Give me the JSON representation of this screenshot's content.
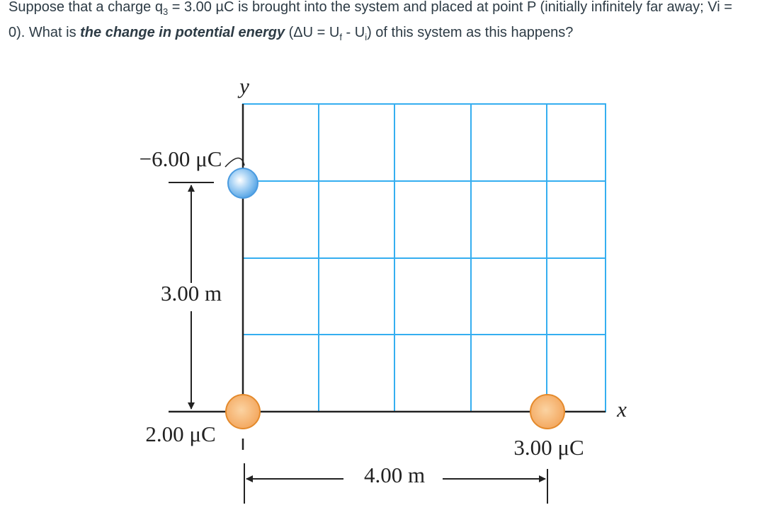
{
  "question": {
    "segments": [
      "Suppose that a charge q",
      "3",
      " = 3.00 µC is brought into the system and placed at point P (initially infinitely far away; Vi = 0). What is ",
      "the change in potential energy",
      " (ΔU = U",
      "f",
      " - U",
      "i",
      ") of this system as this happens?"
    ]
  },
  "diagram": {
    "axis_labels": {
      "y": "y",
      "x": "x"
    },
    "charges": [
      {
        "label": "−6.00 μC"
      },
      {
        "label": "2.00 μC"
      },
      {
        "label": "3.00 μC"
      }
    ],
    "dimensions": {
      "vertical": "3.00 m",
      "horizontal": "4.00 m"
    }
  }
}
